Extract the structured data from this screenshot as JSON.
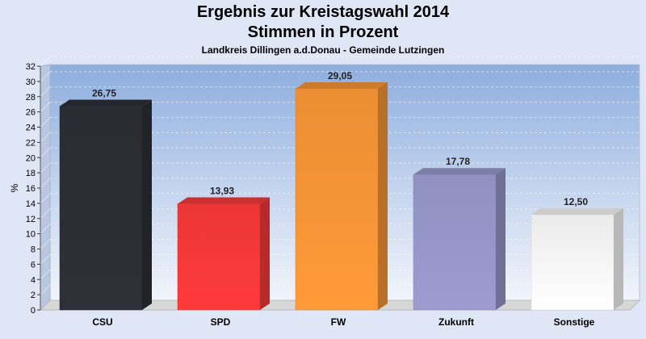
{
  "chart_data": {
    "type": "bar",
    "title": "Ergebnis zur Kreistagswahl 2014",
    "subtitle": "Stimmen in Prozent",
    "subsubtitle": "Landkreis Dillingen a.d.Donau - Gemeinde Lutzingen",
    "ylabel": "%",
    "xlabel": "",
    "ylim": [
      0,
      32
    ],
    "yticks": [
      0,
      2,
      4,
      6,
      8,
      10,
      12,
      14,
      16,
      18,
      20,
      22,
      24,
      26,
      28,
      30,
      32
    ],
    "grid": true,
    "categories": [
      "CSU",
      "SPD",
      "FW",
      "Zukunft",
      "Sonstige"
    ],
    "values": [
      26.75,
      13.93,
      29.05,
      17.78,
      12.5
    ],
    "value_labels": [
      "26,75",
      "13,93",
      "29,05",
      "17,78",
      "12,50"
    ],
    "colors": [
      "#2e3038",
      "#ff3b3b",
      "#ff9a38",
      "#9c9cd2",
      "#ffffff"
    ]
  }
}
